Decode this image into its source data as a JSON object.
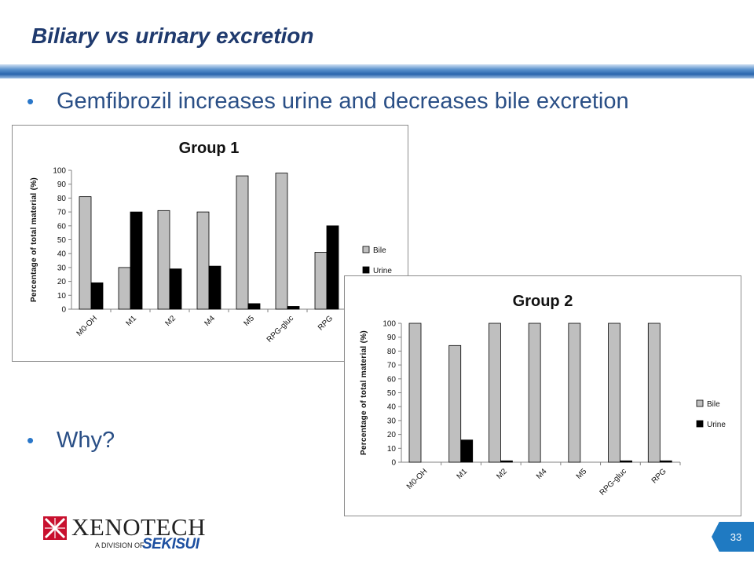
{
  "slide": {
    "title": "Biliary vs urinary excretion",
    "bullets": [
      "Gemfibrozil increases urine and decreases bile excretion",
      "Why?"
    ],
    "page_number": "33"
  },
  "logo": {
    "name": "XenoTech",
    "display": "XENOTECH",
    "subtitle": "A DIVISION OF",
    "parent": "SEKISUI"
  },
  "colors": {
    "title": "#1f3a6e",
    "bullet_text": "#2a4f86",
    "accent": "#1f7ac2",
    "bile": "#bfbfbf",
    "urine": "#000000"
  },
  "chart_data": [
    {
      "type": "bar",
      "title": "Group 1",
      "ylabel": "Percentage of total material (%)",
      "xlabel": "",
      "ylim": [
        0,
        100
      ],
      "yticks": [
        0,
        10,
        20,
        30,
        40,
        50,
        60,
        70,
        80,
        90,
        100
      ],
      "grid": false,
      "legend": "right",
      "categories": [
        "M0-OH",
        "M1",
        "M2",
        "M4",
        "M5",
        "RPG-gluc",
        "RPG"
      ],
      "series": [
        {
          "name": "Bile",
          "color": "#bfbfbf",
          "values": [
            81,
            30,
            71,
            70,
            96,
            98,
            41
          ]
        },
        {
          "name": "Urine",
          "color": "#000000",
          "values": [
            19,
            70,
            29,
            31,
            4,
            2,
            60
          ]
        }
      ]
    },
    {
      "type": "bar",
      "title": "Group 2",
      "ylabel": "Percentage of total material (%)",
      "xlabel": "",
      "ylim": [
        0,
        100
      ],
      "yticks": [
        0,
        10,
        20,
        30,
        40,
        50,
        60,
        70,
        80,
        90,
        100
      ],
      "grid": false,
      "legend": "right",
      "categories": [
        "M0-OH",
        "M1",
        "M2",
        "M4",
        "M5",
        "RPG-gluc",
        "RPG"
      ],
      "series": [
        {
          "name": "Bile",
          "color": "#bfbfbf",
          "values": [
            100,
            84,
            100,
            100,
            100,
            100,
            100
          ]
        },
        {
          "name": "Urine",
          "color": "#000000",
          "values": [
            0,
            16,
            1,
            0,
            0,
            1,
            1
          ]
        }
      ]
    }
  ]
}
